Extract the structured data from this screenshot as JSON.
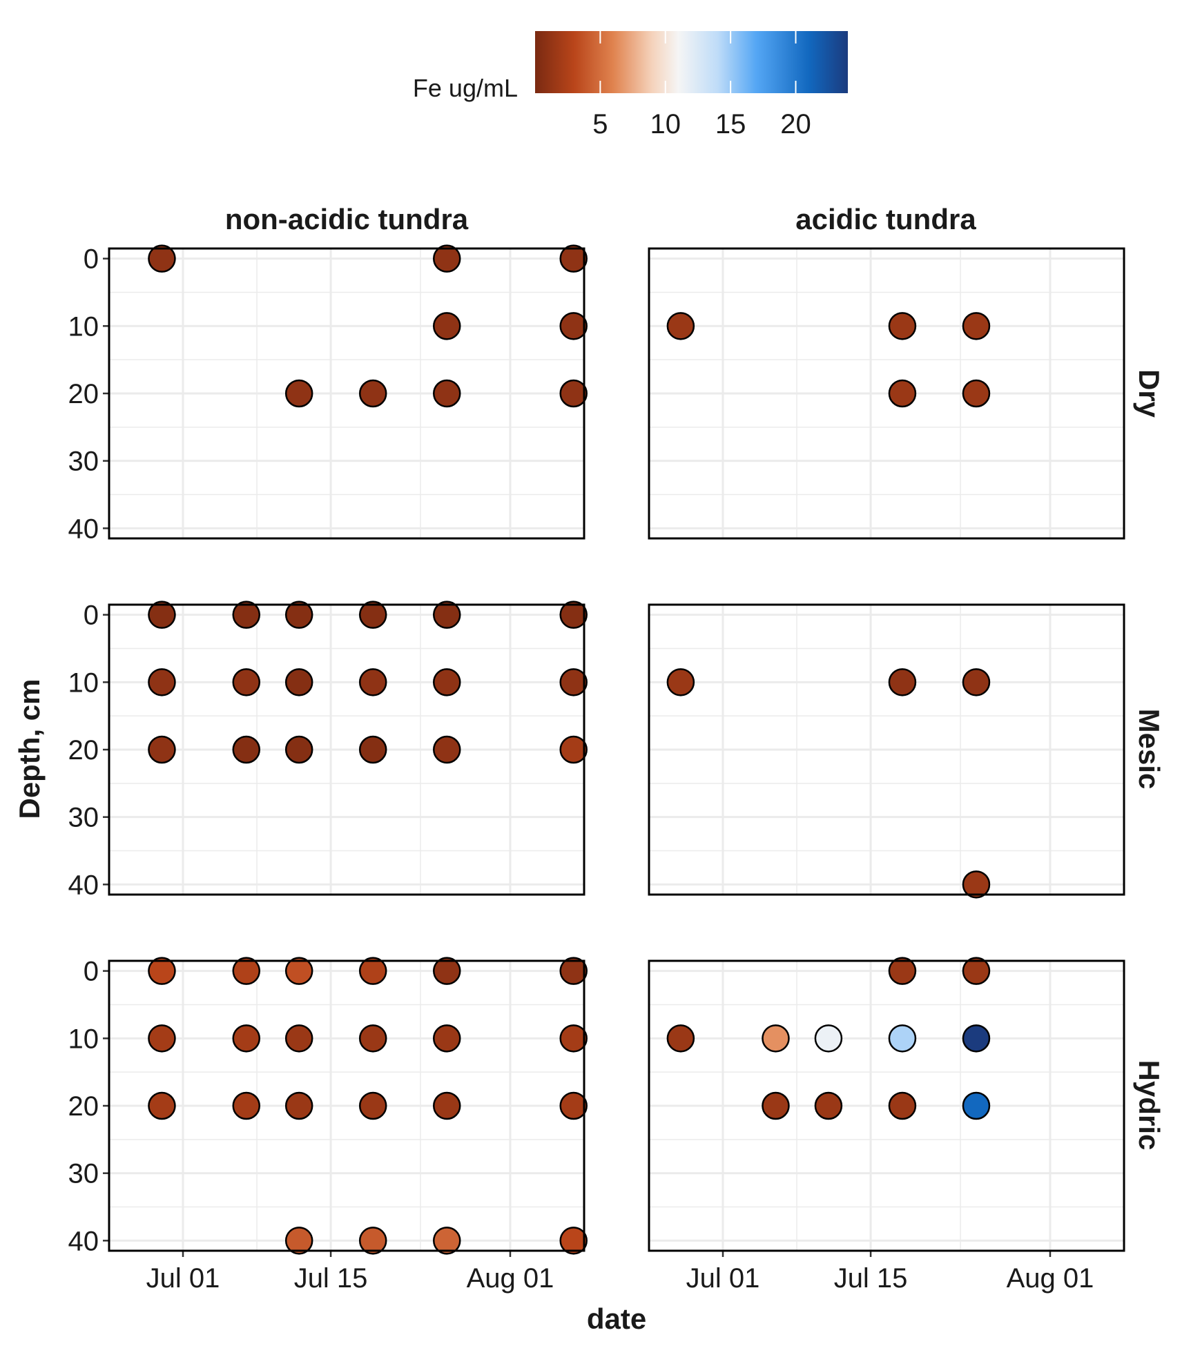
{
  "colors": {
    "background": "#ffffff",
    "grid": "#ebebeb",
    "panel_border": "#000000",
    "point_stroke": "#000000"
  },
  "chart_data": {
    "type": "scatter",
    "x_title": "date",
    "y_title": "Depth, cm",
    "x_ticks": [
      {
        "date": "2019-07-01",
        "label": "Jul 01"
      },
      {
        "date": "2019-07-15",
        "label": "Jul 15"
      },
      {
        "date": "2019-08-01",
        "label": "Aug 01"
      }
    ],
    "xlim": [
      "2019-06-24",
      "2019-08-08"
    ],
    "y_ticks": [
      0,
      10,
      20,
      30,
      40
    ],
    "ylim": [
      -1.5,
      41.5
    ],
    "y_reversed": true,
    "grid": true,
    "column_labels": [
      "non-acidic tundra",
      "acidic tundra"
    ],
    "row_labels": [
      "Dry",
      "Mesic",
      "Hydric"
    ],
    "legend": {
      "title": "Fe ug/mL",
      "position": "top",
      "ticks": [
        5,
        10,
        15,
        20
      ],
      "range": [
        0,
        24
      ],
      "colors": [
        {
          "v": 0,
          "c": "#7a2a12"
        },
        {
          "v": 3,
          "c": "#b9451a"
        },
        {
          "v": 6,
          "c": "#e0834f"
        },
        {
          "v": 9,
          "c": "#f5d3bc"
        },
        {
          "v": 11,
          "c": "#f5f5f5"
        },
        {
          "v": 14,
          "c": "#bfdcf8"
        },
        {
          "v": 17,
          "c": "#54a6f4"
        },
        {
          "v": 21,
          "c": "#1268bf"
        },
        {
          "v": 24,
          "c": "#1b3b7e"
        }
      ]
    },
    "panels": [
      {
        "column": "non-acidic tundra",
        "row": "Dry",
        "points": [
          {
            "date": "2019-06-29",
            "depth": 0,
            "fe": 1
          },
          {
            "date": "2019-07-12",
            "depth": 20,
            "fe": 1
          },
          {
            "date": "2019-07-19",
            "depth": 20,
            "fe": 1
          },
          {
            "date": "2019-07-26",
            "depth": 0,
            "fe": 1
          },
          {
            "date": "2019-07-26",
            "depth": 10,
            "fe": 1
          },
          {
            "date": "2019-07-26",
            "depth": 20,
            "fe": 1
          },
          {
            "date": "2019-08-07",
            "depth": 0,
            "fe": 1
          },
          {
            "date": "2019-08-07",
            "depth": 10,
            "fe": 1
          },
          {
            "date": "2019-08-07",
            "depth": 20,
            "fe": 1
          }
        ]
      },
      {
        "column": "acidic tundra",
        "row": "Dry",
        "points": [
          {
            "date": "2019-06-27",
            "depth": 10,
            "fe": 1.5
          },
          {
            "date": "2019-07-18",
            "depth": 10,
            "fe": 1.5
          },
          {
            "date": "2019-07-18",
            "depth": 20,
            "fe": 1.5
          },
          {
            "date": "2019-07-25",
            "depth": 10,
            "fe": 1.5
          },
          {
            "date": "2019-07-25",
            "depth": 20,
            "fe": 1.5
          }
        ]
      },
      {
        "column": "non-acidic tundra",
        "row": "Mesic",
        "points": [
          {
            "date": "2019-06-29",
            "depth": 0,
            "fe": 0.5
          },
          {
            "date": "2019-06-29",
            "depth": 10,
            "fe": 1
          },
          {
            "date": "2019-06-29",
            "depth": 20,
            "fe": 1
          },
          {
            "date": "2019-07-07",
            "depth": 0,
            "fe": 0.5
          },
          {
            "date": "2019-07-07",
            "depth": 10,
            "fe": 1
          },
          {
            "date": "2019-07-07",
            "depth": 20,
            "fe": 0.5
          },
          {
            "date": "2019-07-12",
            "depth": 0,
            "fe": 0.5
          },
          {
            "date": "2019-07-12",
            "depth": 10,
            "fe": 0.5
          },
          {
            "date": "2019-07-12",
            "depth": 20,
            "fe": 0.5
          },
          {
            "date": "2019-07-19",
            "depth": 0,
            "fe": 0.5
          },
          {
            "date": "2019-07-19",
            "depth": 10,
            "fe": 1
          },
          {
            "date": "2019-07-19",
            "depth": 20,
            "fe": 0.5
          },
          {
            "date": "2019-07-26",
            "depth": 0,
            "fe": 0.5
          },
          {
            "date": "2019-07-26",
            "depth": 10,
            "fe": 1
          },
          {
            "date": "2019-07-26",
            "depth": 20,
            "fe": 1
          },
          {
            "date": "2019-08-07",
            "depth": 0,
            "fe": 0.5
          },
          {
            "date": "2019-08-07",
            "depth": 10,
            "fe": 1
          },
          {
            "date": "2019-08-07",
            "depth": 20,
            "fe": 2
          }
        ]
      },
      {
        "column": "acidic tundra",
        "row": "Mesic",
        "points": [
          {
            "date": "2019-06-27",
            "depth": 10,
            "fe": 1.5
          },
          {
            "date": "2019-07-18",
            "depth": 10,
            "fe": 1
          },
          {
            "date": "2019-07-25",
            "depth": 10,
            "fe": 1
          },
          {
            "date": "2019-07-25",
            "depth": 40,
            "fe": 1.5
          }
        ]
      },
      {
        "column": "non-acidic tundra",
        "row": "Hydric",
        "points": [
          {
            "date": "2019-06-29",
            "depth": 0,
            "fe": 3
          },
          {
            "date": "2019-06-29",
            "depth": 10,
            "fe": 2
          },
          {
            "date": "2019-06-29",
            "depth": 20,
            "fe": 2
          },
          {
            "date": "2019-07-07",
            "depth": 0,
            "fe": 2.5
          },
          {
            "date": "2019-07-07",
            "depth": 10,
            "fe": 2
          },
          {
            "date": "2019-07-07",
            "depth": 20,
            "fe": 2
          },
          {
            "date": "2019-07-12",
            "depth": 0,
            "fe": 3.5
          },
          {
            "date": "2019-07-12",
            "depth": 10,
            "fe": 1.5
          },
          {
            "date": "2019-07-12",
            "depth": 20,
            "fe": 1.5
          },
          {
            "date": "2019-07-12",
            "depth": 40,
            "fe": 4
          },
          {
            "date": "2019-07-19",
            "depth": 0,
            "fe": 2.5
          },
          {
            "date": "2019-07-19",
            "depth": 10,
            "fe": 1.5
          },
          {
            "date": "2019-07-19",
            "depth": 20,
            "fe": 1.5
          },
          {
            "date": "2019-07-19",
            "depth": 40,
            "fe": 4
          },
          {
            "date": "2019-07-26",
            "depth": 0,
            "fe": 1
          },
          {
            "date": "2019-07-26",
            "depth": 10,
            "fe": 1.5
          },
          {
            "date": "2019-07-26",
            "depth": 20,
            "fe": 1.5
          },
          {
            "date": "2019-07-26",
            "depth": 40,
            "fe": 4.5
          },
          {
            "date": "2019-08-07",
            "depth": 0,
            "fe": 1
          },
          {
            "date": "2019-08-07",
            "depth": 10,
            "fe": 2
          },
          {
            "date": "2019-08-07",
            "depth": 20,
            "fe": 2
          },
          {
            "date": "2019-08-07",
            "depth": 40,
            "fe": 3
          }
        ]
      },
      {
        "column": "acidic tundra",
        "row": "Hydric",
        "points": [
          {
            "date": "2019-06-27",
            "depth": 10,
            "fe": 1.5
          },
          {
            "date": "2019-07-06",
            "depth": 10,
            "fe": 6.5
          },
          {
            "date": "2019-07-06",
            "depth": 20,
            "fe": 1.5
          },
          {
            "date": "2019-07-11",
            "depth": 10,
            "fe": 11.5
          },
          {
            "date": "2019-07-11",
            "depth": 20,
            "fe": 1.5
          },
          {
            "date": "2019-07-18",
            "depth": 0,
            "fe": 1.5
          },
          {
            "date": "2019-07-18",
            "depth": 10,
            "fe": 14.5
          },
          {
            "date": "2019-07-18",
            "depth": 20,
            "fe": 1.5
          },
          {
            "date": "2019-07-25",
            "depth": 0,
            "fe": 1.5
          },
          {
            "date": "2019-07-25",
            "depth": 10,
            "fe": 24
          },
          {
            "date": "2019-07-25",
            "depth": 20,
            "fe": 21
          }
        ]
      }
    ]
  }
}
